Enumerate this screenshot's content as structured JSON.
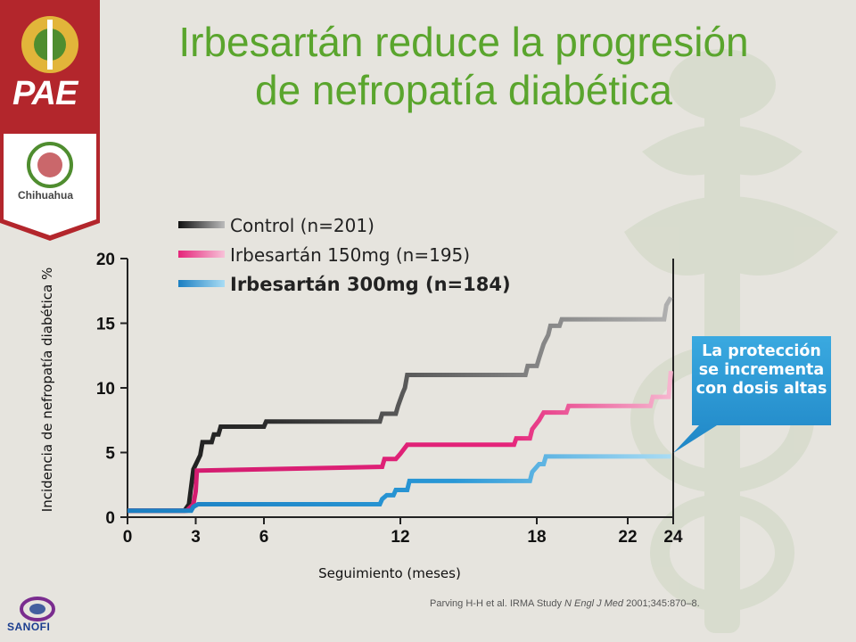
{
  "slide": {
    "title_line1": "Irbesartán reduce la progresión",
    "title_line2": "de nefropatía diabética",
    "citation_authors": "Parving H-H et al.  IRMA Study ",
    "citation_journal": "N Engl J Med",
    "citation_rest": " 2001;345:870–8.",
    "callout_lines": [
      "La protección",
      "se incrementa",
      "con dosis altas"
    ],
    "logo_pae": "PAE",
    "logo_chihuahua": "Chihuahua",
    "logo_sanofi": "SANOFI",
    "colors": {
      "title": "#5aa52d",
      "control": "#333333",
      "irb150": "#e5247a",
      "irb300": "#2a98d6",
      "callout": "#2796d3",
      "banner": "#b3262c"
    }
  },
  "chart_data": {
    "type": "line",
    "step": true,
    "xlabel": "Seguimiento (meses)",
    "ylabel": "Incidencia de nefropatía diabética %",
    "xticks": [
      0,
      3,
      6,
      12,
      18,
      22,
      24
    ],
    "yticks": [
      0,
      5,
      10,
      15,
      20
    ],
    "xlim": [
      0,
      24
    ],
    "ylim": [
      0,
      20
    ],
    "legend_position": "top",
    "series": [
      {
        "name": "Control (n=201)",
        "color": "#333333",
        "points": [
          [
            0,
            0.5
          ],
          [
            2.5,
            0.5
          ],
          [
            2.7,
            1
          ],
          [
            2.9,
            3.7
          ],
          [
            3.2,
            4.8
          ],
          [
            3.3,
            5.8
          ],
          [
            3.7,
            5.8
          ],
          [
            3.8,
            6.4
          ],
          [
            4,
            6.4
          ],
          [
            4.1,
            7
          ],
          [
            6,
            7
          ],
          [
            6.1,
            7.4
          ],
          [
            11.1,
            7.4
          ],
          [
            11.2,
            8
          ],
          [
            11.8,
            8
          ],
          [
            11.9,
            8.6
          ],
          [
            12.1,
            9.6
          ],
          [
            12.2,
            10
          ],
          [
            12.3,
            11
          ],
          [
            17.5,
            11
          ],
          [
            17.6,
            11.7
          ],
          [
            18,
            11.7
          ],
          [
            18.1,
            12.3
          ],
          [
            18.3,
            13.4
          ],
          [
            18.5,
            14.1
          ],
          [
            18.6,
            14.8
          ],
          [
            19,
            14.8
          ],
          [
            19.1,
            15.3
          ],
          [
            23.6,
            15.3
          ],
          [
            23.7,
            16.4
          ],
          [
            23.9,
            17
          ]
        ]
      },
      {
        "name": "Irbesartán 150mg (n=195)",
        "color": "#e5247a",
        "points": [
          [
            0,
            0.5
          ],
          [
            2.6,
            0.5
          ],
          [
            2.9,
            1
          ],
          [
            3,
            2
          ],
          [
            3.05,
            3.6
          ],
          [
            11.2,
            3.9
          ],
          [
            11.3,
            4.5
          ],
          [
            11.8,
            4.5
          ],
          [
            12,
            4.9
          ],
          [
            12.3,
            5.6
          ],
          [
            17,
            5.6
          ],
          [
            17.1,
            6.1
          ],
          [
            17.7,
            6.1
          ],
          [
            17.8,
            6.8
          ],
          [
            18.1,
            7.5
          ],
          [
            18.3,
            8.1
          ],
          [
            19.3,
            8.1
          ],
          [
            19.4,
            8.6
          ],
          [
            23,
            8.6
          ],
          [
            23.1,
            9.3
          ],
          [
            23.8,
            9.3
          ],
          [
            23.9,
            11.3
          ]
        ]
      },
      {
        "name": "Irbesartán 300mg (n=184)",
        "color": "#2a98d6",
        "points": [
          [
            0,
            0.5
          ],
          [
            2.8,
            0.5
          ],
          [
            2.9,
            0.8
          ],
          [
            3.1,
            1
          ],
          [
            11.1,
            1
          ],
          [
            11.2,
            1.4
          ],
          [
            11.4,
            1.7
          ],
          [
            11.7,
            1.7
          ],
          [
            11.8,
            2.1
          ],
          [
            12.3,
            2.1
          ],
          [
            12.4,
            2.8
          ],
          [
            17.7,
            2.8
          ],
          [
            17.8,
            3.5
          ],
          [
            18.1,
            4.1
          ],
          [
            18.3,
            4.1
          ],
          [
            18.4,
            4.7
          ],
          [
            23.9,
            4.7
          ]
        ]
      }
    ]
  }
}
